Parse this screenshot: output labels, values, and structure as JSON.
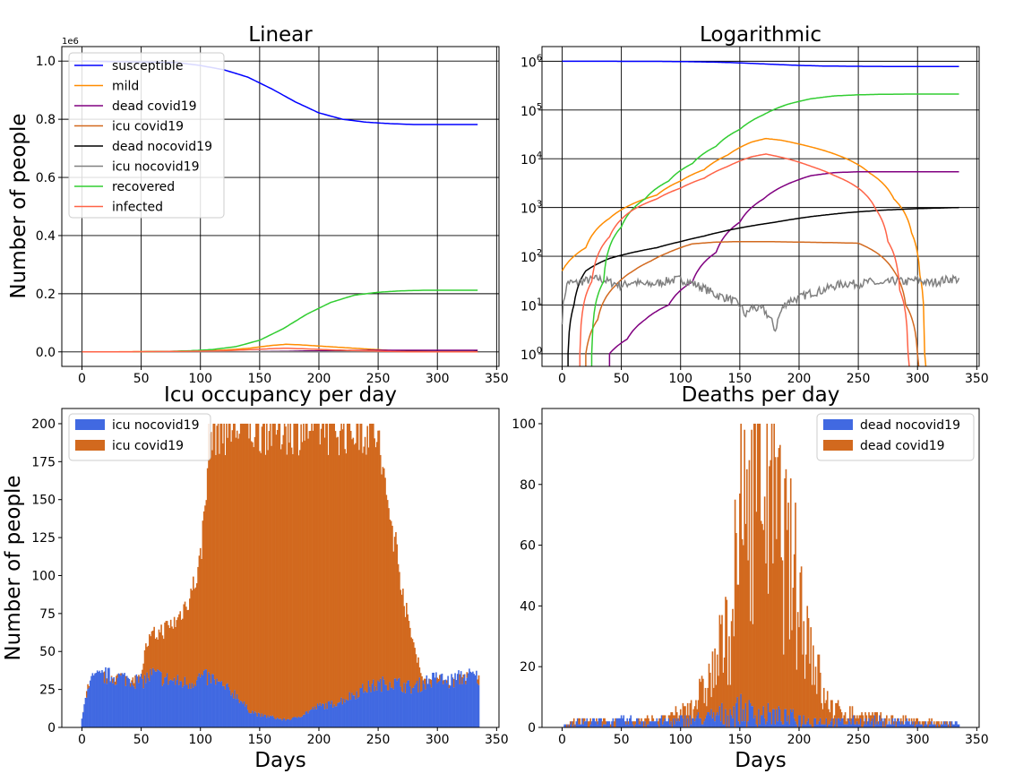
{
  "ylabel_common": "Number of people",
  "xlabel_common": "Days",
  "chart_data": [
    {
      "type": "line",
      "title": "Linear",
      "ylabel": "Number of people",
      "xlabel": "",
      "xlim": [
        -17,
        352
      ],
      "ylim": [
        -50000,
        1050000
      ],
      "offset_text": "1e6",
      "xticks": [
        0,
        50,
        100,
        150,
        200,
        250,
        300,
        350
      ],
      "yticks": [
        0,
        200000,
        400000,
        600000,
        800000,
        1000000
      ],
      "ytick_labels": [
        "0.0",
        "0.2",
        "0.4",
        "0.6",
        "0.8",
        "1.0"
      ],
      "grid": true,
      "legend": "upper-left",
      "legend_labels": [
        "susceptible",
        "mild",
        "dead covid19",
        "icu covid19",
        "dead nocovid19",
        "icu nocovid19",
        "recovered",
        "infected"
      ]
    },
    {
      "type": "line",
      "title": "Logarithmic",
      "xlim": [
        -17,
        352
      ],
      "ylim": [
        0.55,
        2000000
      ],
      "log_y": true,
      "xticks": [
        0,
        50,
        100,
        150,
        200,
        250,
        300,
        350
      ],
      "ytick_exponents": [
        0,
        1,
        2,
        3,
        4,
        5,
        6
      ],
      "grid": true
    },
    {
      "type": "bar",
      "title": "Icu occupancy per day",
      "ylabel": "Number of people",
      "xlabel": "Days",
      "xlim": [
        -17,
        352
      ],
      "ylim": [
        0,
        210
      ],
      "xticks": [
        0,
        50,
        100,
        150,
        200,
        250,
        300,
        350
      ],
      "yticks": [
        0,
        25,
        50,
        75,
        100,
        125,
        150,
        175,
        200
      ],
      "stacked": true,
      "legend": "upper-left",
      "series": [
        {
          "name": "icu nocovid19",
          "color": "#4169e1"
        },
        {
          "name": "icu covid19",
          "color": "#d2691e"
        }
      ]
    },
    {
      "type": "bar",
      "title": "Deaths per day",
      "xlabel": "Days",
      "xlim": [
        -17,
        352
      ],
      "ylim": [
        0,
        105
      ],
      "xticks": [
        0,
        50,
        100,
        150,
        200,
        250,
        300,
        350
      ],
      "yticks": [
        0,
        20,
        40,
        60,
        80,
        100
      ],
      "stacked": true,
      "legend": "upper-right",
      "series": [
        {
          "name": "dead nocovid19",
          "color": "#4169e1"
        },
        {
          "name": "dead covid19",
          "color": "#d2691e"
        }
      ]
    }
  ],
  "series_colors": {
    "susceptible": "#0000ff",
    "mild": "#ff8c00",
    "dead covid19": "#800080",
    "icu covid19": "#d2691e",
    "dead nocovid19": "#000000",
    "icu nocovid19": "#808080",
    "recovered": "#32cd32",
    "infected": "#ff6347"
  },
  "series_points": {
    "susceptible": [
      [
        0,
        1000000
      ],
      [
        80,
        995000
      ],
      [
        100,
        985000
      ],
      [
        120,
        970000
      ],
      [
        140,
        945000
      ],
      [
        160,
        905000
      ],
      [
        180,
        860000
      ],
      [
        200,
        822000
      ],
      [
        220,
        800000
      ],
      [
        240,
        790000
      ],
      [
        260,
        785000
      ],
      [
        280,
        782000
      ],
      [
        335,
        782000
      ]
    ],
    "mild": [
      [
        0,
        50
      ],
      [
        20,
        150
      ],
      [
        40,
        600
      ],
      [
        60,
        1200
      ],
      [
        80,
        1800
      ],
      [
        100,
        3500
      ],
      [
        120,
        6000
      ],
      [
        140,
        12000
      ],
      [
        160,
        22000
      ],
      [
        172,
        26000
      ],
      [
        185,
        24000
      ],
      [
        200,
        20000
      ],
      [
        220,
        15000
      ],
      [
        240,
        10000
      ],
      [
        260,
        5000
      ],
      [
        280,
        1500
      ],
      [
        295,
        300
      ],
      [
        302,
        40
      ],
      [
        306,
        1
      ]
    ],
    "dead covid19": [
      [
        40,
        1
      ],
      [
        55,
        2
      ],
      [
        70,
        5
      ],
      [
        90,
        10
      ],
      [
        110,
        30
      ],
      [
        130,
        120
      ],
      [
        150,
        500
      ],
      [
        170,
        1500
      ],
      [
        190,
        3000
      ],
      [
        210,
        4500
      ],
      [
        230,
        5200
      ],
      [
        250,
        5400
      ],
      [
        335,
        5400
      ]
    ],
    "icu covid19": [
      [
        20,
        1
      ],
      [
        30,
        5
      ],
      [
        45,
        25
      ],
      [
        60,
        50
      ],
      [
        75,
        80
      ],
      [
        90,
        120
      ],
      [
        110,
        180
      ],
      [
        130,
        195
      ],
      [
        150,
        200
      ],
      [
        170,
        200
      ],
      [
        200,
        195
      ],
      [
        230,
        190
      ],
      [
        250,
        185
      ],
      [
        265,
        120
      ],
      [
        280,
        50
      ],
      [
        290,
        10
      ],
      [
        300,
        1
      ]
    ],
    "dead nocovid19": [
      [
        5,
        1
      ],
      [
        10,
        10
      ],
      [
        20,
        50
      ],
      [
        40,
        90
      ],
      [
        60,
        120
      ],
      [
        80,
        150
      ],
      [
        100,
        200
      ],
      [
        120,
        260
      ],
      [
        150,
        380
      ],
      [
        180,
        500
      ],
      [
        210,
        650
      ],
      [
        240,
        780
      ],
      [
        270,
        880
      ],
      [
        300,
        950
      ],
      [
        335,
        1000
      ]
    ],
    "icu nocovid19": [
      [
        0,
        5
      ],
      [
        5,
        30
      ],
      [
        10,
        28
      ],
      [
        20,
        32
      ],
      [
        30,
        35
      ],
      [
        40,
        30
      ],
      [
        50,
        25
      ],
      [
        60,
        30
      ],
      [
        70,
        26
      ],
      [
        80,
        28
      ],
      [
        90,
        32
      ],
      [
        100,
        34
      ],
      [
        110,
        28
      ],
      [
        120,
        22
      ],
      [
        130,
        16
      ],
      [
        140,
        14
      ],
      [
        150,
        10
      ],
      [
        155,
        6
      ],
      [
        160,
        9
      ],
      [
        170,
        8
      ],
      [
        180,
        3
      ],
      [
        190,
        12
      ],
      [
        200,
        14
      ],
      [
        210,
        18
      ],
      [
        220,
        20
      ],
      [
        230,
        25
      ],
      [
        240,
        28
      ],
      [
        250,
        27
      ],
      [
        260,
        30
      ],
      [
        270,
        26
      ],
      [
        280,
        32
      ],
      [
        290,
        30
      ],
      [
        300,
        33
      ],
      [
        310,
        28
      ],
      [
        320,
        32
      ],
      [
        330,
        35
      ],
      [
        335,
        33
      ]
    ],
    "recovered": [
      [
        25,
        1
      ],
      [
        35,
        30
      ],
      [
        50,
        400
      ],
      [
        70,
        1500
      ],
      [
        90,
        3500
      ],
      [
        110,
        8000
      ],
      [
        130,
        18000
      ],
      [
        150,
        40000
      ],
      [
        170,
        80000
      ],
      [
        190,
        130000
      ],
      [
        210,
        170000
      ],
      [
        230,
        195000
      ],
      [
        250,
        205000
      ],
      [
        270,
        210000
      ],
      [
        290,
        212000
      ],
      [
        335,
        212000
      ]
    ],
    "infected": [
      [
        15,
        1
      ],
      [
        25,
        30
      ],
      [
        40,
        250
      ],
      [
        60,
        900
      ],
      [
        80,
        1500
      ],
      [
        100,
        2500
      ],
      [
        120,
        4000
      ],
      [
        140,
        7000
      ],
      [
        160,
        11000
      ],
      [
        172,
        12500
      ],
      [
        190,
        10000
      ],
      [
        210,
        7000
      ],
      [
        230,
        4500
      ],
      [
        250,
        2500
      ],
      [
        265,
        900
      ],
      [
        275,
        200
      ],
      [
        285,
        20
      ],
      [
        292,
        1
      ]
    ]
  },
  "icu_bars": {
    "nocovid_keys": [
      [
        0,
        5
      ],
      [
        5,
        28
      ],
      [
        10,
        32
      ],
      [
        20,
        34
      ],
      [
        30,
        33
      ],
      [
        40,
        32
      ],
      [
        50,
        30
      ],
      [
        60,
        35
      ],
      [
        70,
        32
      ],
      [
        80,
        30
      ],
      [
        90,
        29
      ],
      [
        100,
        33
      ],
      [
        110,
        32
      ],
      [
        120,
        26
      ],
      [
        130,
        22
      ],
      [
        140,
        12
      ],
      [
        150,
        8
      ],
      [
        160,
        7
      ],
      [
        170,
        5
      ],
      [
        180,
        6
      ],
      [
        190,
        10
      ],
      [
        200,
        14
      ],
      [
        210,
        15
      ],
      [
        220,
        18
      ],
      [
        230,
        22
      ],
      [
        240,
        26
      ],
      [
        250,
        28
      ],
      [
        260,
        30
      ],
      [
        270,
        28
      ],
      [
        280,
        26
      ],
      [
        290,
        30
      ],
      [
        300,
        32
      ],
      [
        310,
        30
      ],
      [
        320,
        33
      ],
      [
        330,
        34
      ],
      [
        335,
        32
      ]
    ],
    "total_keys": [
      [
        0,
        5
      ],
      [
        5,
        28
      ],
      [
        10,
        32
      ],
      [
        20,
        34
      ],
      [
        30,
        33
      ],
      [
        40,
        32
      ],
      [
        50,
        32
      ],
      [
        52,
        45
      ],
      [
        55,
        55
      ],
      [
        60,
        60
      ],
      [
        70,
        65
      ],
      [
        80,
        70
      ],
      [
        90,
        85
      ],
      [
        95,
        95
      ],
      [
        100,
        110
      ],
      [
        103,
        140
      ],
      [
        107,
        190
      ],
      [
        112,
        198
      ],
      [
        150,
        199
      ],
      [
        200,
        199
      ],
      [
        245,
        198
      ],
      [
        250,
        190
      ],
      [
        255,
        160
      ],
      [
        260,
        140
      ],
      [
        265,
        120
      ],
      [
        270,
        95
      ],
      [
        275,
        70
      ],
      [
        280,
        55
      ],
      [
        285,
        42
      ],
      [
        288,
        30
      ],
      [
        290,
        30
      ],
      [
        300,
        32
      ],
      [
        310,
        30
      ],
      [
        320,
        33
      ],
      [
        330,
        34
      ],
      [
        335,
        32
      ]
    ]
  },
  "death_bars": {
    "nocovid_keys": [
      [
        0,
        0
      ],
      [
        5,
        1
      ],
      [
        10,
        2
      ],
      [
        30,
        2
      ],
      [
        60,
        2
      ],
      [
        90,
        2
      ],
      [
        120,
        3
      ],
      [
        150,
        6
      ],
      [
        160,
        5
      ],
      [
        170,
        5
      ],
      [
        180,
        4
      ],
      [
        200,
        3
      ],
      [
        220,
        2
      ],
      [
        250,
        2
      ],
      [
        280,
        2
      ],
      [
        310,
        1
      ],
      [
        335,
        1
      ]
    ],
    "total_keys": [
      [
        0,
        0
      ],
      [
        5,
        1
      ],
      [
        10,
        2
      ],
      [
        30,
        2
      ],
      [
        60,
        2
      ],
      [
        90,
        3
      ],
      [
        100,
        5
      ],
      [
        110,
        8
      ],
      [
        120,
        12
      ],
      [
        130,
        20
      ],
      [
        135,
        26
      ],
      [
        140,
        30
      ],
      [
        145,
        45
      ],
      [
        150,
        60
      ],
      [
        155,
        75
      ],
      [
        160,
        82
      ],
      [
        165,
        92
      ],
      [
        170,
        88
      ],
      [
        175,
        80
      ],
      [
        180,
        70
      ],
      [
        185,
        62
      ],
      [
        190,
        55
      ],
      [
        195,
        50
      ],
      [
        200,
        42
      ],
      [
        205,
        36
      ],
      [
        210,
        28
      ],
      [
        215,
        20
      ],
      [
        220,
        10
      ],
      [
        230,
        6
      ],
      [
        250,
        4
      ],
      [
        270,
        3
      ],
      [
        300,
        2
      ],
      [
        335,
        1
      ]
    ]
  }
}
